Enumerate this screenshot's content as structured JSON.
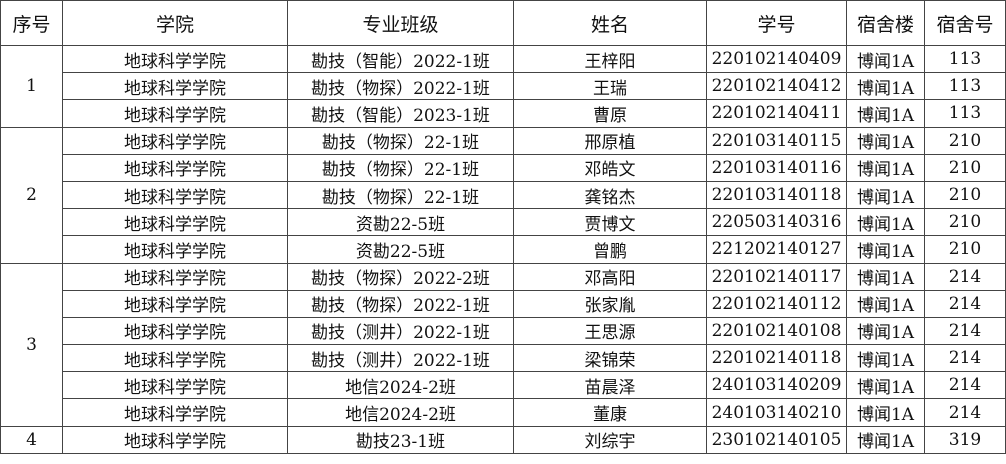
{
  "headers": [
    "序号",
    "学院",
    "专业班级",
    "姓名",
    "学号",
    "宿舍楼",
    "宿舍号"
  ],
  "groups": [
    {
      "index": "1",
      "rows": [
        [
          "地球科学学院",
          "勘技（智能）2022-1班",
          "王梓阳",
          "220102140409",
          "博闻1A",
          "113"
        ],
        [
          "地球科学学院",
          "勘技（物探）2022-1班",
          "王瑞",
          "220102140412",
          "博闻1A",
          "113"
        ],
        [
          "地球科学学院",
          "勘技（智能）2023-1班",
          "曹原",
          "220102140411",
          "博闻1A",
          "113"
        ]
      ]
    },
    {
      "index": "2",
      "rows": [
        [
          "地球科学学院",
          "勘技（物探）22-1班",
          "邢原植",
          "220103140115",
          "博闻1A",
          "210"
        ],
        [
          "地球科学学院",
          "勘技（物探）22-1班",
          "邓皓文",
          "220103140116",
          "博闻1A",
          "210"
        ],
        [
          "地球科学学院",
          "勘技（物探）22-1班",
          "龚铭杰",
          "220103140118",
          "博闻1A",
          "210"
        ],
        [
          "地球科学学院",
          "资勘22-5班",
          "贾博文",
          "220503140316",
          "博闻1A",
          "210"
        ],
        [
          "地球科学学院",
          "资勘22-5班",
          "曾鹏",
          "221202140127",
          "博闻1A",
          "210"
        ]
      ]
    },
    {
      "index": "3",
      "rows": [
        [
          "地球科学学院",
          "勘技（物探）2022-2班",
          "邓高阳",
          "220102140117",
          "博闻1A",
          "214"
        ],
        [
          "地球科学学院",
          "勘技（物探）2022-1班",
          "张家胤",
          "220102140112",
          "博闻1A",
          "214"
        ],
        [
          "地球科学学院",
          "勘技（测井）2022-1班",
          "王思源",
          "220102140108",
          "博闻1A",
          "214"
        ],
        [
          "地球科学学院",
          "勘技（测井）2022-1班",
          "梁锦荣",
          "220102140118",
          "博闻1A",
          "214"
        ],
        [
          "地球科学学院",
          "地信2024-2班",
          "苗晨泽",
          "240103140209",
          "博闻1A",
          "214"
        ],
        [
          "地球科学学院",
          "地信2024-2班",
          "董康",
          "240103140210",
          "博闻1A",
          "214"
        ]
      ]
    },
    {
      "index": "4",
      "rows": [
        [
          "地球科学学院",
          "勘技23-1班",
          "刘综宇",
          "230102140105",
          "博闻1A",
          "319"
        ]
      ]
    }
  ]
}
